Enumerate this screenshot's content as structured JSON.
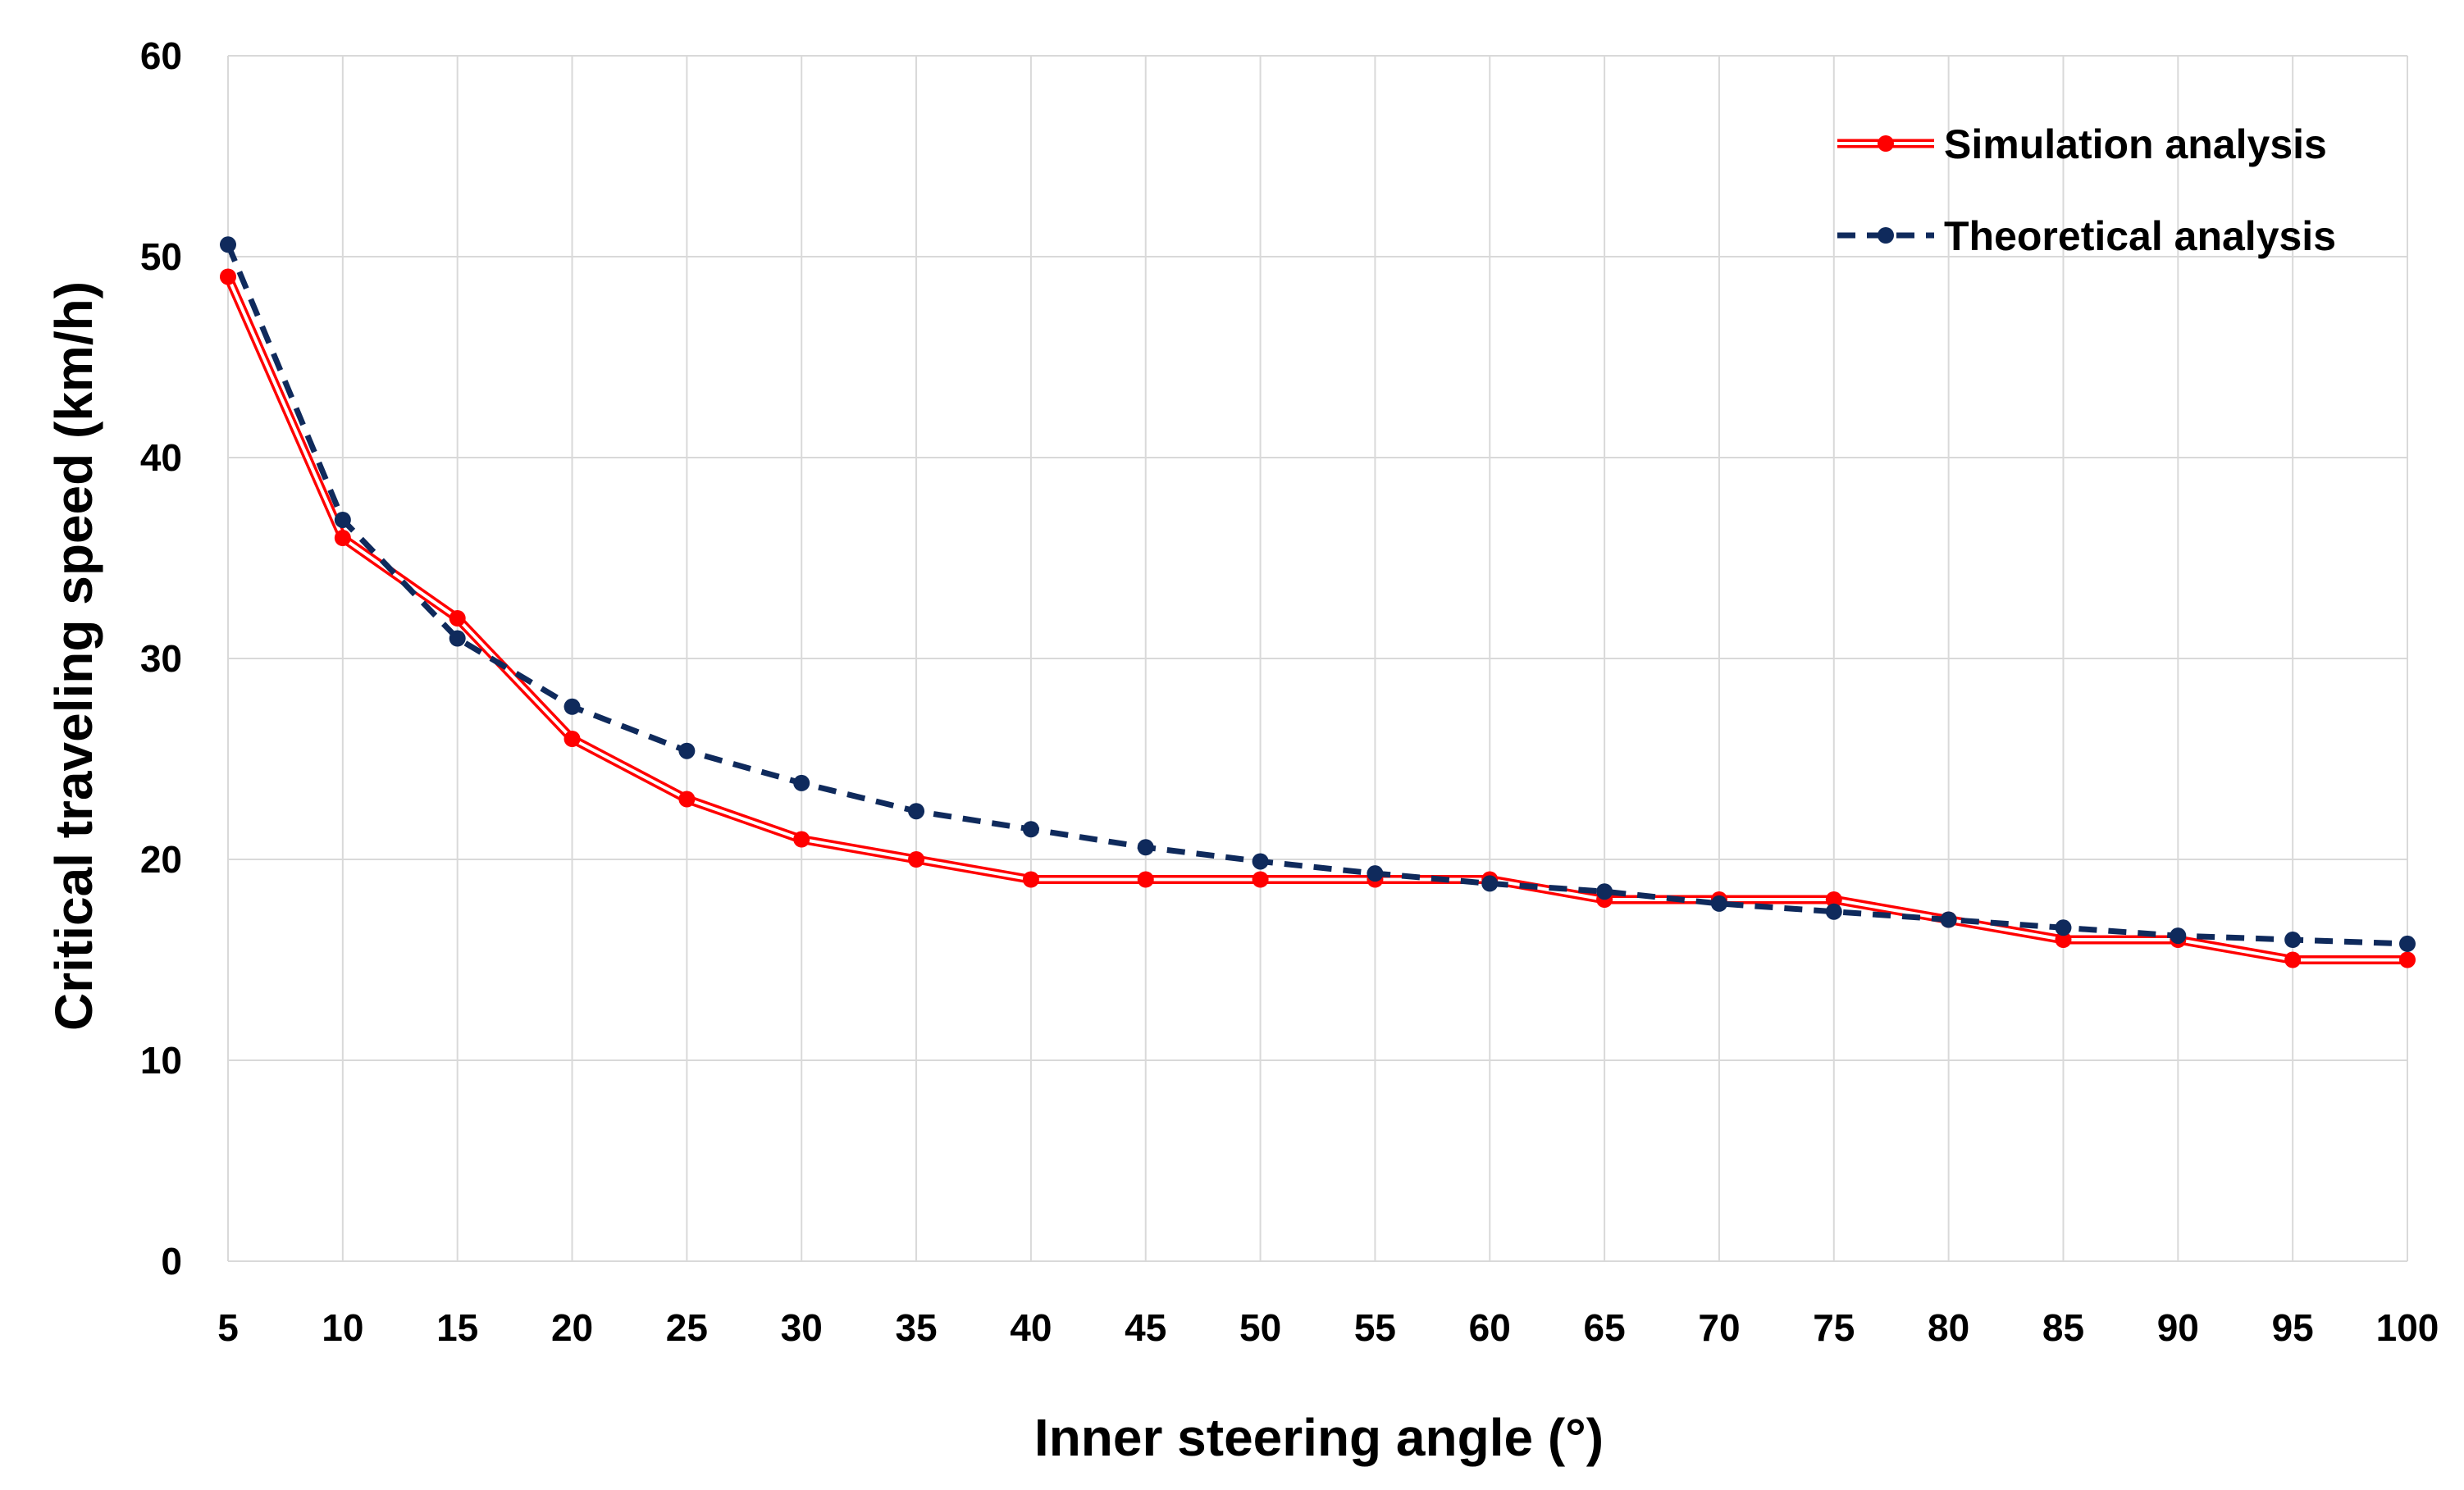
{
  "chart_data": {
    "type": "line",
    "title": "",
    "xlabel": "Inner steering angle (°)",
    "ylabel": "Critical traveling speed  (km/h)",
    "x": [
      5,
      10,
      15,
      20,
      25,
      30,
      35,
      40,
      45,
      50,
      55,
      60,
      65,
      70,
      75,
      80,
      85,
      90,
      95,
      100
    ],
    "xticks": [
      "5",
      "10",
      "15",
      "20",
      "25",
      "30",
      "35",
      "40",
      "45",
      "50",
      "55",
      "60",
      "65",
      "70",
      "75",
      "80",
      "85",
      "90",
      "95",
      "100"
    ],
    "yticks": [
      "0",
      "10",
      "20",
      "30",
      "40",
      "50",
      "60"
    ],
    "ylim": [
      0,
      60
    ],
    "grid": true,
    "legend_position": "top-right",
    "series": [
      {
        "name": "Simulation analysis",
        "color": "#ff0000",
        "style": "double-solid",
        "values": [
          49,
          36,
          32,
          26,
          23,
          21,
          20,
          19,
          19,
          19,
          19,
          19,
          18,
          18,
          18,
          17,
          16,
          16,
          15,
          15
        ]
      },
      {
        "name": "Theoretical analysis",
        "color": "#0f2a5c",
        "style": "dashed",
        "values": [
          50.6,
          36.9,
          31.0,
          27.6,
          25.4,
          23.8,
          22.4,
          21.5,
          20.6,
          19.9,
          19.3,
          18.8,
          18.4,
          17.8,
          17.4,
          17.0,
          16.6,
          16.2,
          16.0,
          15.8
        ]
      }
    ]
  }
}
